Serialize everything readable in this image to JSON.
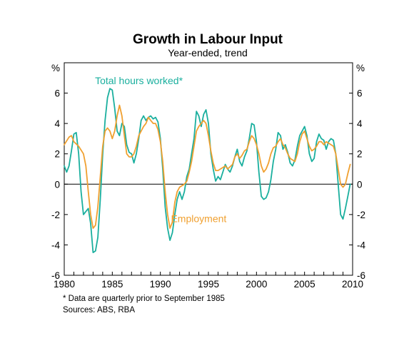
{
  "chart_data": {
    "type": "line",
    "title": "Growth in Labour Input",
    "subtitle": "Year-ended, trend",
    "y_unit_label": "%",
    "xlim": [
      1980,
      2010
    ],
    "ylim": [
      -6,
      8
    ],
    "y_ticks": [
      -6,
      -4,
      -2,
      0,
      2,
      4,
      6
    ],
    "x_ticks": [
      1980,
      1985,
      1990,
      1995,
      2000,
      2005,
      2010
    ],
    "grid": false,
    "series": [
      {
        "name": "Total hours worked*",
        "color": "#1aaf9e",
        "label_pos": [
          1983.2,
          6.6
        ],
        "points": [
          [
            1980.0,
            1.2
          ],
          [
            1980.25,
            0.8
          ],
          [
            1980.5,
            1.2
          ],
          [
            1980.75,
            2.2
          ],
          [
            1981.0,
            3.3
          ],
          [
            1981.25,
            3.4
          ],
          [
            1981.5,
            2.0
          ],
          [
            1981.75,
            -0.5
          ],
          [
            1982.0,
            -2.0
          ],
          [
            1982.25,
            -1.8
          ],
          [
            1982.5,
            -1.6
          ],
          [
            1982.75,
            -2.6
          ],
          [
            1983.0,
            -4.5
          ],
          [
            1983.25,
            -4.4
          ],
          [
            1983.5,
            -3.5
          ],
          [
            1983.75,
            -1.0
          ],
          [
            1984.0,
            2.0
          ],
          [
            1984.25,
            4.2
          ],
          [
            1984.5,
            5.7
          ],
          [
            1984.75,
            6.3
          ],
          [
            1985.0,
            6.2
          ],
          [
            1985.25,
            5.0
          ],
          [
            1985.5,
            3.5
          ],
          [
            1985.75,
            3.2
          ],
          [
            1986.0,
            4.0
          ],
          [
            1986.25,
            3.8
          ],
          [
            1986.5,
            2.6
          ],
          [
            1986.75,
            2.1
          ],
          [
            1987.0,
            2.0
          ],
          [
            1987.25,
            1.4
          ],
          [
            1987.5,
            2.0
          ],
          [
            1987.75,
            3.0
          ],
          [
            1988.0,
            4.2
          ],
          [
            1988.25,
            4.5
          ],
          [
            1988.5,
            4.2
          ],
          [
            1988.75,
            4.4
          ],
          [
            1989.0,
            4.5
          ],
          [
            1989.25,
            4.3
          ],
          [
            1989.5,
            4.4
          ],
          [
            1989.75,
            4.1
          ],
          [
            1990.0,
            3.0
          ],
          [
            1990.25,
            1.0
          ],
          [
            1990.5,
            -1.5
          ],
          [
            1990.75,
            -2.9
          ],
          [
            1991.0,
            -3.7
          ],
          [
            1991.25,
            -3.2
          ],
          [
            1991.5,
            -2.0
          ],
          [
            1991.75,
            -1.0
          ],
          [
            1992.0,
            -0.5
          ],
          [
            1992.25,
            -1.0
          ],
          [
            1992.5,
            -0.5
          ],
          [
            1992.75,
            0.5
          ],
          [
            1993.0,
            1.0
          ],
          [
            1993.25,
            2.0
          ],
          [
            1993.5,
            3.0
          ],
          [
            1993.75,
            4.8
          ],
          [
            1994.0,
            4.5
          ],
          [
            1994.25,
            3.8
          ],
          [
            1994.5,
            4.6
          ],
          [
            1994.75,
            4.9
          ],
          [
            1995.0,
            4.0
          ],
          [
            1995.25,
            2.0
          ],
          [
            1995.5,
            1.0
          ],
          [
            1995.75,
            0.2
          ],
          [
            1996.0,
            0.5
          ],
          [
            1996.25,
            0.3
          ],
          [
            1996.5,
            0.8
          ],
          [
            1996.75,
            1.3
          ],
          [
            1997.0,
            1.0
          ],
          [
            1997.25,
            0.8
          ],
          [
            1997.5,
            1.2
          ],
          [
            1997.75,
            1.8
          ],
          [
            1998.0,
            2.3
          ],
          [
            1998.25,
            1.5
          ],
          [
            1998.5,
            1.2
          ],
          [
            1998.75,
            1.8
          ],
          [
            1999.0,
            2.2
          ],
          [
            1999.25,
            3.0
          ],
          [
            1999.5,
            4.0
          ],
          [
            1999.75,
            3.9
          ],
          [
            2000.0,
            2.8
          ],
          [
            2000.25,
            0.8
          ],
          [
            2000.5,
            -0.8
          ],
          [
            2000.75,
            -1.0
          ],
          [
            2001.0,
            -0.9
          ],
          [
            2001.25,
            -0.5
          ],
          [
            2001.5,
            0.3
          ],
          [
            2001.75,
            1.5
          ],
          [
            2002.0,
            2.3
          ],
          [
            2002.25,
            3.4
          ],
          [
            2002.5,
            3.2
          ],
          [
            2002.75,
            2.3
          ],
          [
            2003.0,
            2.6
          ],
          [
            2003.25,
            2.1
          ],
          [
            2003.5,
            1.4
          ],
          [
            2003.75,
            1.2
          ],
          [
            2004.0,
            1.6
          ],
          [
            2004.25,
            2.5
          ],
          [
            2004.5,
            3.2
          ],
          [
            2004.75,
            3.5
          ],
          [
            2005.0,
            3.8
          ],
          [
            2005.25,
            3.2
          ],
          [
            2005.5,
            2.0
          ],
          [
            2005.75,
            1.5
          ],
          [
            2006.0,
            1.7
          ],
          [
            2006.25,
            2.8
          ],
          [
            2006.5,
            3.3
          ],
          [
            2006.75,
            3.0
          ],
          [
            2007.0,
            2.9
          ],
          [
            2007.25,
            2.3
          ],
          [
            2007.5,
            2.8
          ],
          [
            2007.75,
            3.0
          ],
          [
            2008.0,
            2.9
          ],
          [
            2008.25,
            2.0
          ],
          [
            2008.5,
            0.0
          ],
          [
            2008.75,
            -2.0
          ],
          [
            2009.0,
            -2.3
          ],
          [
            2009.25,
            -1.6
          ],
          [
            2009.5,
            -0.8
          ],
          [
            2009.75,
            0.0
          ]
        ]
      },
      {
        "name": "Employment",
        "color": "#f0a030",
        "label_pos": [
          1991.1,
          -2.5
        ],
        "points": [
          [
            1980.0,
            2.6
          ],
          [
            1980.5,
            3.1
          ],
          [
            1980.75,
            3.2
          ],
          [
            1981.0,
            2.8
          ],
          [
            1981.5,
            2.5
          ],
          [
            1982.0,
            2.0
          ],
          [
            1982.25,
            1.2
          ],
          [
            1982.5,
            -0.5
          ],
          [
            1982.75,
            -2.0
          ],
          [
            1983.0,
            -2.9
          ],
          [
            1983.25,
            -2.7
          ],
          [
            1983.5,
            -1.5
          ],
          [
            1983.75,
            0.5
          ],
          [
            1984.0,
            2.5
          ],
          [
            1984.25,
            3.5
          ],
          [
            1984.5,
            3.7
          ],
          [
            1984.75,
            3.5
          ],
          [
            1985.0,
            3.0
          ],
          [
            1985.25,
            3.5
          ],
          [
            1985.5,
            4.5
          ],
          [
            1985.75,
            5.2
          ],
          [
            1986.0,
            4.5
          ],
          [
            1986.25,
            3.2
          ],
          [
            1986.5,
            2.0
          ],
          [
            1986.75,
            1.8
          ],
          [
            1987.0,
            1.8
          ],
          [
            1987.25,
            2.0
          ],
          [
            1987.5,
            2.5
          ],
          [
            1987.75,
            3.2
          ],
          [
            1988.0,
            3.5
          ],
          [
            1988.25,
            3.8
          ],
          [
            1988.5,
            4.0
          ],
          [
            1988.75,
            4.4
          ],
          [
            1989.0,
            4.2
          ],
          [
            1989.25,
            4.0
          ],
          [
            1989.5,
            4.0
          ],
          [
            1989.75,
            3.6
          ],
          [
            1990.0,
            2.8
          ],
          [
            1990.25,
            1.5
          ],
          [
            1990.5,
            -0.5
          ],
          [
            1990.75,
            -2.0
          ],
          [
            1991.0,
            -2.9
          ],
          [
            1991.25,
            -2.5
          ],
          [
            1991.5,
            -1.2
          ],
          [
            1991.75,
            -0.5
          ],
          [
            1992.0,
            -0.2
          ],
          [
            1992.5,
            0.0
          ],
          [
            1992.75,
            0.2
          ],
          [
            1993.0,
            0.8
          ],
          [
            1993.25,
            1.5
          ],
          [
            1993.5,
            2.5
          ],
          [
            1993.75,
            3.5
          ],
          [
            1994.0,
            3.8
          ],
          [
            1994.25,
            4.0
          ],
          [
            1994.5,
            4.2
          ],
          [
            1994.75,
            4.0
          ],
          [
            1995.0,
            3.2
          ],
          [
            1995.25,
            2.2
          ],
          [
            1995.5,
            1.4
          ],
          [
            1995.75,
            0.9
          ],
          [
            1996.0,
            0.9
          ],
          [
            1996.5,
            1.1
          ],
          [
            1996.75,
            1.2
          ],
          [
            1997.0,
            1.0
          ],
          [
            1997.5,
            1.3
          ],
          [
            1997.75,
            1.8
          ],
          [
            1998.0,
            2.0
          ],
          [
            1998.25,
            1.7
          ],
          [
            1998.5,
            1.9
          ],
          [
            1998.75,
            2.2
          ],
          [
            1999.0,
            2.3
          ],
          [
            1999.25,
            2.8
          ],
          [
            1999.5,
            3.2
          ],
          [
            1999.75,
            3.0
          ],
          [
            2000.0,
            2.6
          ],
          [
            2000.25,
            2.0
          ],
          [
            2000.5,
            1.2
          ],
          [
            2000.75,
            0.8
          ],
          [
            2001.0,
            1.0
          ],
          [
            2001.25,
            1.4
          ],
          [
            2001.5,
            2.0
          ],
          [
            2001.75,
            2.4
          ],
          [
            2002.0,
            2.5
          ],
          [
            2002.25,
            2.8
          ],
          [
            2002.5,
            3.0
          ],
          [
            2002.75,
            2.6
          ],
          [
            2003.0,
            2.4
          ],
          [
            2003.25,
            2.0
          ],
          [
            2003.5,
            1.7
          ],
          [
            2003.75,
            1.6
          ],
          [
            2004.0,
            1.5
          ],
          [
            2004.25,
            2.0
          ],
          [
            2004.5,
            2.8
          ],
          [
            2004.75,
            3.3
          ],
          [
            2005.0,
            3.5
          ],
          [
            2005.25,
            3.0
          ],
          [
            2005.5,
            2.5
          ],
          [
            2005.75,
            2.2
          ],
          [
            2006.0,
            2.3
          ],
          [
            2006.25,
            2.5
          ],
          [
            2006.5,
            2.8
          ],
          [
            2006.75,
            2.8
          ],
          [
            2007.0,
            2.6
          ],
          [
            2007.25,
            2.8
          ],
          [
            2007.5,
            2.7
          ],
          [
            2007.75,
            2.6
          ],
          [
            2008.0,
            2.5
          ],
          [
            2008.25,
            2.0
          ],
          [
            2008.5,
            1.0
          ],
          [
            2008.75,
            0.0
          ],
          [
            2009.0,
            -0.2
          ],
          [
            2009.25,
            0.0
          ],
          [
            2009.5,
            0.7
          ],
          [
            2009.75,
            1.3
          ]
        ]
      }
    ]
  },
  "footnote": "*   Data are quarterly prior to September 1985",
  "sources": "Sources: ABS, RBA"
}
